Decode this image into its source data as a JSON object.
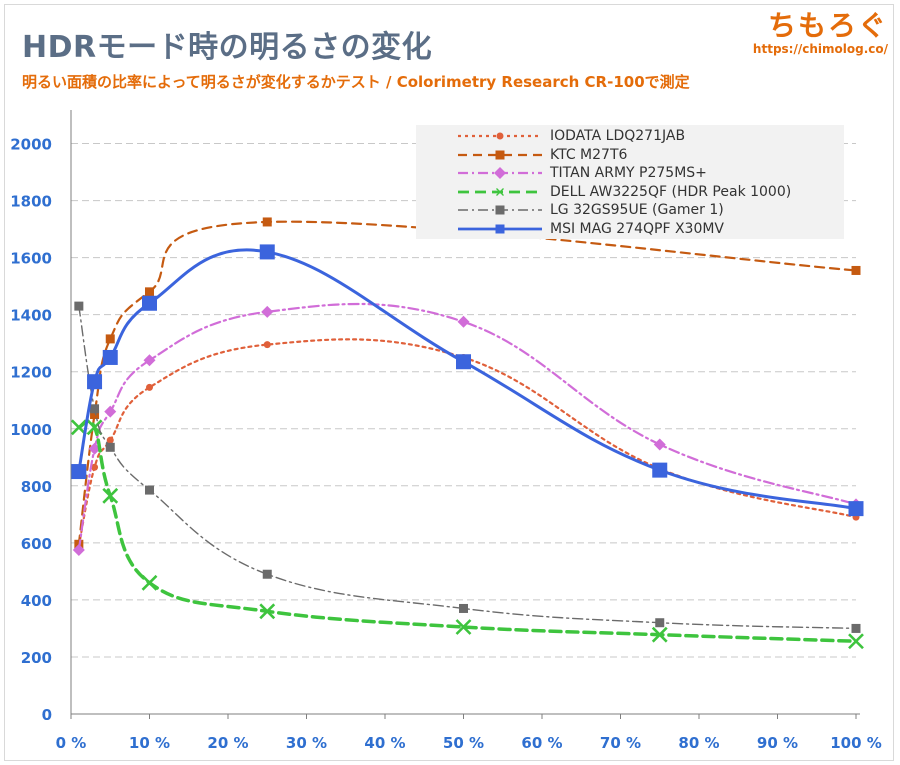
{
  "header": {
    "title": "HDRモード時の明るさの変化",
    "subtitle": "明るい面積の比率によって明るさが変化するかテスト / Colorimetry Research CR-100で測定",
    "brand_name": "ちもろぐ",
    "brand_url": "https://chimolog.co/"
  },
  "chart_data": {
    "type": "line",
    "xlim": [
      0,
      100
    ],
    "ylim": [
      0,
      2100
    ],
    "x_ticks": [
      0,
      10,
      20,
      30,
      40,
      50,
      60,
      70,
      80,
      90,
      100
    ],
    "x_tick_labels": [
      "0 %",
      "10 %",
      "20 %",
      "30 %",
      "40 %",
      "50 %",
      "60 %",
      "70 %",
      "80 %",
      "90 %",
      "100 %"
    ],
    "y_ticks": [
      0,
      200,
      400,
      600,
      800,
      1000,
      1200,
      1400,
      1600,
      1800,
      2000
    ],
    "y_tick_labels": [
      "0",
      "200",
      "400",
      "600",
      "800",
      "1000",
      "1200",
      "1400",
      "1600",
      "1800",
      "2000"
    ],
    "grid": "horizontal dashed",
    "legend_position": "top-right",
    "series": [
      {
        "name": "IODATA LDQ271JAB",
        "color": "#e0603a",
        "dash": "3,4",
        "width": 2.2,
        "marker": "circle",
        "x": [
          1,
          3,
          5,
          10,
          25,
          50,
          75,
          100
        ],
        "y": [
          590,
          865,
          960,
          1145,
          1295,
          1250,
          860,
          690
        ]
      },
      {
        "name": "KTC M27T6",
        "color": "#c55a11",
        "dash": "9,6",
        "width": 2.2,
        "marker": "square",
        "x": [
          1,
          3,
          5,
          10,
          25,
          100
        ],
        "y": [
          595,
          1050,
          1315,
          1480,
          1725,
          1555
        ]
      },
      {
        "name": "TITAN ARMY P275MS+",
        "color": "#d16dd8",
        "dash": "10,4,2,4",
        "width": 2.2,
        "marker": "diamond",
        "x": [
          1,
          3,
          5,
          10,
          25,
          50,
          75,
          100
        ],
        "y": [
          575,
          930,
          1060,
          1240,
          1410,
          1375,
          945,
          735
        ]
      },
      {
        "name": "DELL AW3225QF (HDR Peak 1000)",
        "color": "#3ec43e",
        "dash": "11,6",
        "width": 3.5,
        "marker": "x",
        "x": [
          1,
          3,
          5,
          10,
          25,
          50,
          75,
          100
        ],
        "y": [
          1005,
          1005,
          765,
          460,
          360,
          305,
          278,
          255
        ]
      },
      {
        "name": "LG 32GS95UE (Gamer 1)",
        "color": "#6b6b6b",
        "dash": "10,4,2,4",
        "width": 1.4,
        "marker": "square",
        "x": [
          1,
          3,
          5,
          10,
          25,
          50,
          75,
          100
        ],
        "y": [
          1430,
          1070,
          935,
          785,
          490,
          370,
          320,
          300
        ]
      },
      {
        "name": "MSI MAG 274QPF X30MV",
        "color": "#3b64dd",
        "dash": "",
        "width": 3,
        "marker": "bigsquare",
        "x": [
          1,
          3,
          5,
          10,
          25,
          50,
          75,
          100
        ],
        "y": [
          850,
          1165,
          1250,
          1440,
          1620,
          1235,
          855,
          720
        ]
      }
    ]
  }
}
